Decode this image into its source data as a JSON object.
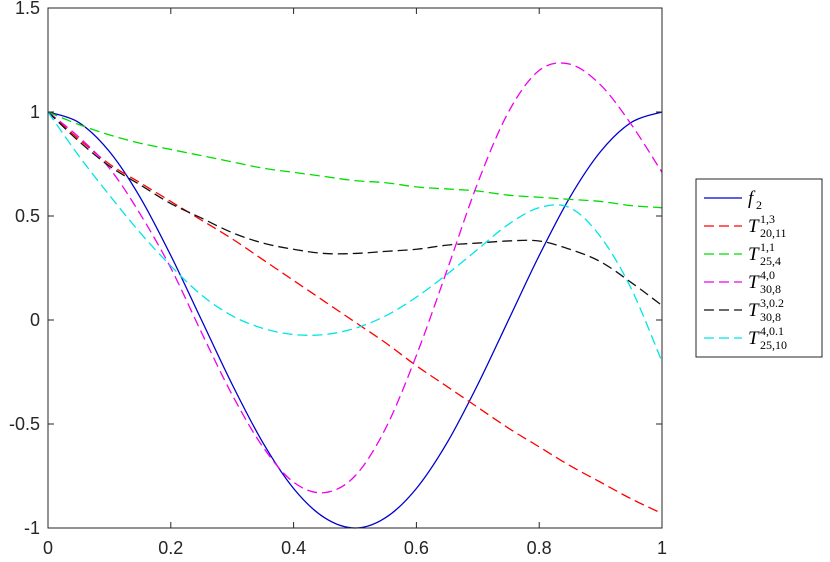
{
  "chart_data": {
    "type": "line",
    "xlabel": "",
    "ylabel": "",
    "xlim": [
      0,
      1
    ],
    "ylim": [
      -1,
      1.5
    ],
    "grid": false,
    "legend_placement": "outside-right",
    "x_ticks": [
      "0",
      "0.2",
      "0.4",
      "0.6",
      "0.8",
      "1"
    ],
    "y_ticks": [
      "-1",
      "-0.5",
      "0",
      "0.5",
      "1",
      "1.5"
    ],
    "x": [
      0,
      0.05,
      0.1,
      0.15,
      0.2,
      0.25,
      0.3,
      0.35,
      0.4,
      0.45,
      0.5,
      0.55,
      0.6,
      0.65,
      0.7,
      0.75,
      0.8,
      0.85,
      0.9,
      0.95,
      1.0
    ],
    "series": [
      {
        "name": "f2",
        "label_main": "f",
        "label_sub": "2",
        "label_sup": "",
        "color": "#0000cd",
        "dash": "solid",
        "values": [
          1.0,
          0.95,
          0.81,
          0.59,
          0.31,
          0.0,
          -0.31,
          -0.59,
          -0.81,
          -0.95,
          -1.0,
          -0.95,
          -0.81,
          -0.59,
          -0.31,
          0.0,
          0.31,
          0.59,
          0.81,
          0.95,
          1.0
        ]
      },
      {
        "name": "T20,11^1,3",
        "label_main": "T",
        "label_sub": "20,11",
        "label_sup": "1,3",
        "color": "#ff0000",
        "dash": "dashed",
        "values": [
          1.0,
          0.87,
          0.75,
          0.66,
          0.57,
          0.48,
          0.39,
          0.29,
          0.19,
          0.09,
          -0.01,
          -0.11,
          -0.22,
          -0.32,
          -0.42,
          -0.52,
          -0.61,
          -0.7,
          -0.78,
          -0.86,
          -0.93
        ]
      },
      {
        "name": "T25,4^1,1",
        "label_main": "T",
        "label_sub": "25,4",
        "label_sup": "1,1",
        "color": "#00dd00",
        "dash": "dashed",
        "values": [
          1.0,
          0.94,
          0.89,
          0.85,
          0.82,
          0.79,
          0.76,
          0.73,
          0.71,
          0.69,
          0.67,
          0.66,
          0.64,
          0.63,
          0.62,
          0.6,
          0.59,
          0.58,
          0.57,
          0.55,
          0.54
        ]
      },
      {
        "name": "T30,8^4,0",
        "label_main": "T",
        "label_sub": "30,8",
        "label_sup": "4,0",
        "color": "#ee00ee",
        "dash": "dashed",
        "values": [
          1.0,
          0.88,
          0.73,
          0.51,
          0.25,
          -0.06,
          -0.36,
          -0.61,
          -0.78,
          -0.83,
          -0.75,
          -0.52,
          -0.17,
          0.24,
          0.66,
          1.0,
          1.2,
          1.23,
          1.13,
          0.94,
          0.71
        ]
      },
      {
        "name": "T30,8^3,0.2",
        "label_main": "T",
        "label_sub": "30,8",
        "label_sup": "3,0.2",
        "color": "#111111",
        "dash": "dashed",
        "values": [
          1.0,
          0.86,
          0.74,
          0.65,
          0.56,
          0.49,
          0.42,
          0.37,
          0.34,
          0.32,
          0.32,
          0.33,
          0.34,
          0.36,
          0.37,
          0.38,
          0.38,
          0.34,
          0.28,
          0.18,
          0.07
        ]
      },
      {
        "name": "T25,10^4,0.1",
        "label_main": "T",
        "label_sub": "25,10",
        "label_sup": "4,0.1",
        "color": "#00e5e5",
        "dash": "dashed",
        "values": [
          1.0,
          0.79,
          0.6,
          0.42,
          0.26,
          0.12,
          0.02,
          -0.04,
          -0.07,
          -0.07,
          -0.04,
          0.02,
          0.11,
          0.22,
          0.34,
          0.46,
          0.54,
          0.54,
          0.4,
          0.15,
          -0.2
        ]
      }
    ]
  }
}
